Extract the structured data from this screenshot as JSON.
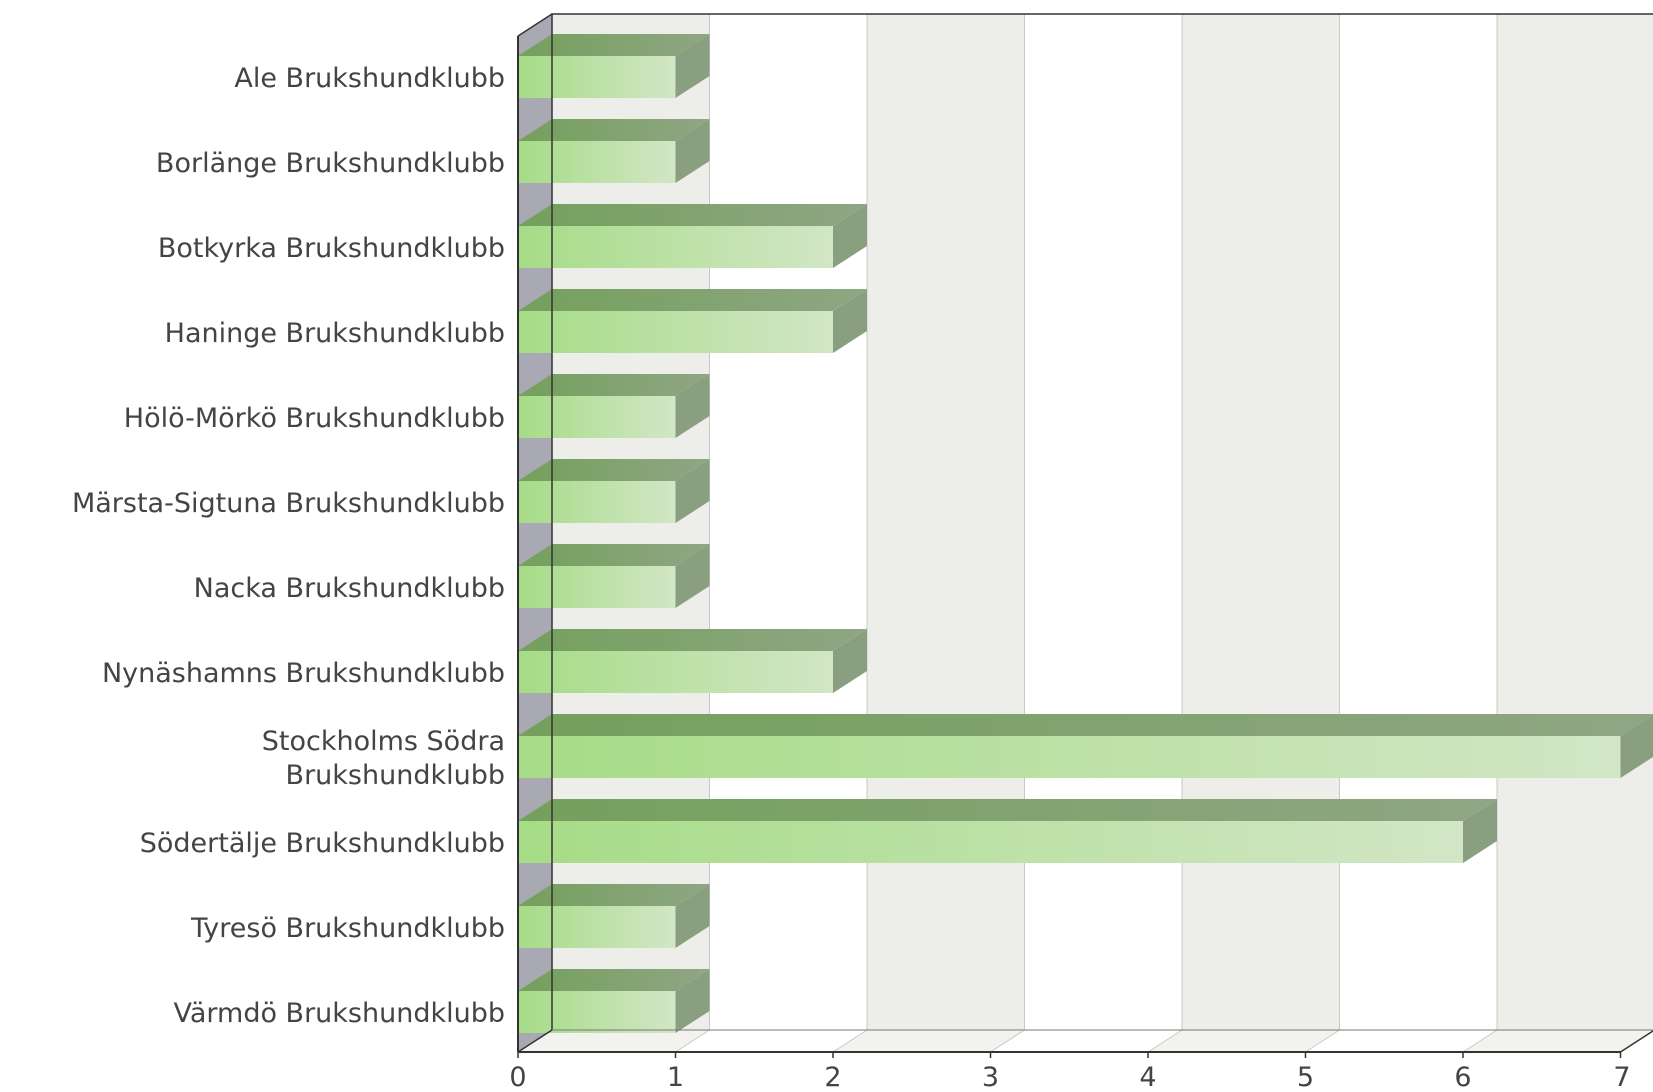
{
  "chart_data": {
    "type": "bar",
    "orientation": "horizontal",
    "three_d": true,
    "categories": [
      "Ale Brukshundklubb",
      "Borlänge Brukshundklubb",
      "Botkyrka Brukshundklubb",
      "Haninge Brukshundklubb",
      "Hölö-Mörkö Brukshundklubb",
      "Märsta-Sigtuna Brukshundklubb",
      "Nacka Brukshundklubb",
      "Nynäshamns Brukshundklubb",
      "Stockholms Södra Brukshundklubb",
      "Södertälje Brukshundklubb",
      "Tyresö Brukshundklubb",
      "Värmdö Brukshundklubb"
    ],
    "values": [
      1,
      1,
      2,
      2,
      1,
      1,
      1,
      2,
      7,
      6,
      1,
      1
    ],
    "xlim": [
      0,
      7
    ],
    "xticks": [
      "0",
      "1",
      "2",
      "3",
      "4",
      "5",
      "6",
      "7"
    ],
    "grid": true,
    "colors": {
      "bar_front_start": "#a6dc86",
      "bar_front_end": "#d2e6c6",
      "bar_top": "#7fa26a",
      "bar_side": "#8a9f80",
      "band_shaded": "#ededea",
      "band_plain": "#ffffff",
      "left_wall": "#a9a9b3",
      "axis": "#333333",
      "label_text": "#444444"
    }
  }
}
